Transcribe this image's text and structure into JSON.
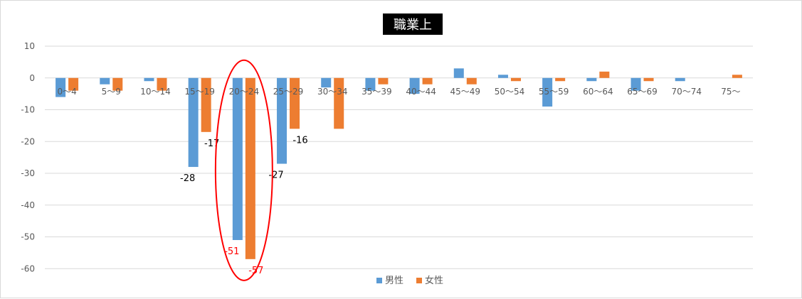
{
  "chart_data": {
    "type": "bar",
    "title": "職業上",
    "xlabel": "",
    "ylabel": "",
    "ylim": [
      -60,
      10
    ],
    "yticks": [
      10,
      0,
      -10,
      -20,
      -30,
      -40,
      -50,
      -60
    ],
    "grid": true,
    "legend_position": "bottom",
    "categories": [
      "0～4",
      "5～9",
      "10～14",
      "15～19",
      "20～24",
      "25～29",
      "30～34",
      "35～39",
      "40～44",
      "45～49",
      "50～54",
      "55～59",
      "60～64",
      "65～69",
      "70～74",
      "75～"
    ],
    "series": [
      {
        "name": "男性",
        "color": "#5b9bd5",
        "values": [
          -6,
          -2,
          -1,
          -28,
          -51,
          -27,
          -3,
          -4,
          -5,
          3,
          1,
          -9,
          -1,
          -4,
          -1,
          0
        ]
      },
      {
        "name": "女性",
        "color": "#ed7d31",
        "values": [
          -4,
          -4,
          -4,
          -17,
          -57,
          -16,
          -16,
          -2,
          -2,
          -2,
          -1,
          -1,
          2,
          -1,
          0,
          1
        ]
      }
    ],
    "data_labels": [
      {
        "series": 0,
        "index": 3,
        "text": "-28",
        "color": "#000000"
      },
      {
        "series": 1,
        "index": 3,
        "text": "-17",
        "color": "#000000"
      },
      {
        "series": 0,
        "index": 4,
        "text": "-51",
        "color": "#ff0000"
      },
      {
        "series": 1,
        "index": 4,
        "text": "-57",
        "color": "#ff0000"
      },
      {
        "series": 0,
        "index": 5,
        "text": "-27",
        "color": "#000000"
      },
      {
        "series": 1,
        "index": 5,
        "text": "-16",
        "color": "#000000"
      }
    ],
    "annotation": {
      "type": "ellipse",
      "category_index": 4,
      "color": "#ff0000"
    }
  }
}
